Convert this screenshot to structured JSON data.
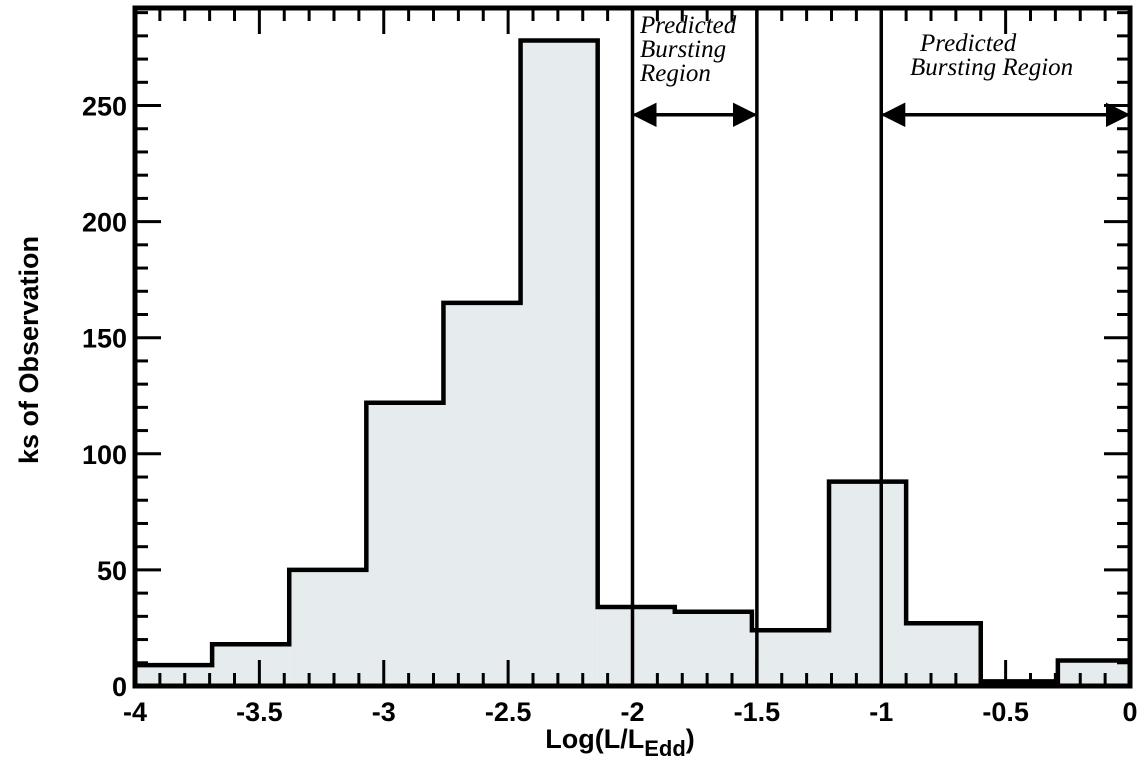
{
  "chart_data": {
    "type": "bar",
    "xlabel": "Log(L/L",
    "xlabel_sub": "Edd",
    "ylabel": "ks of Observation",
    "xlim": [
      -4,
      0
    ],
    "ylim": [
      0,
      292
    ],
    "x_ticks": [
      "-4",
      "-3.5",
      "-3",
      "-2.5",
      "-2",
      "-1.5",
      "-1",
      "-0.5",
      "0"
    ],
    "y_ticks": [
      "0",
      "50",
      "100",
      "150",
      "200",
      "250"
    ],
    "bin_edges": [
      -4.0,
      -3.69,
      -3.38,
      -3.07,
      -2.76,
      -2.45,
      -2.14,
      -1.83,
      -1.52,
      -1.21,
      -0.9,
      -0.6,
      -0.29,
      0.0
    ],
    "values": [
      9,
      18,
      50,
      122,
      165,
      278,
      34,
      32,
      24,
      88,
      27,
      2,
      11
    ],
    "fill_color": "#e6ebee",
    "edge_color": "#000000",
    "vertical_lines": [
      -2,
      -1.5,
      -1
    ],
    "annotations": [
      {
        "lines": [
          "Predicted",
          "Bursting",
          "Region"
        ],
        "x_range": [
          -2,
          -1.5
        ],
        "arrow_y": 246
      },
      {
        "lines": [
          "Predicted",
          "Bursting Region"
        ],
        "x_range": [
          -1,
          0
        ],
        "arrow_y": 246
      }
    ]
  }
}
